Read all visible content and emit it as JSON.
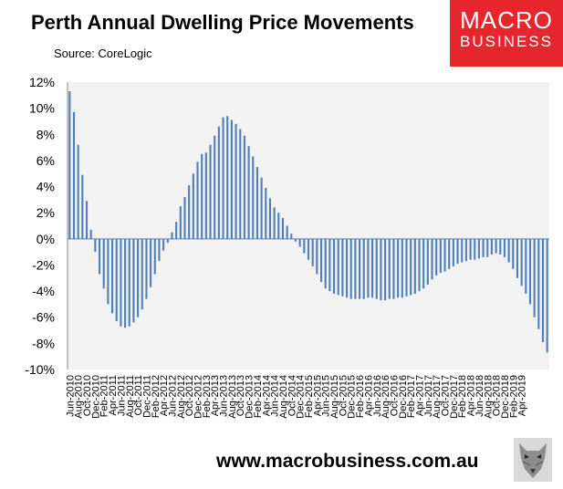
{
  "header": {
    "title": "Perth Annual Dwelling Price Movements",
    "source": "Source: CoreLogic"
  },
  "logo": {
    "line1": "MACRO",
    "line2": "BUSINESS",
    "color": "#e6262d"
  },
  "footer": {
    "url": "www.macrobusiness.com.au"
  },
  "chart_data": {
    "type": "bar",
    "title": "Perth Annual Dwelling Price Movements",
    "source": "Source: CoreLogic",
    "start_month": "2010-06",
    "end_month": "2019-04",
    "ylim": [
      -10,
      12
    ],
    "yticks": [
      "12%",
      "10%",
      "8%",
      "6%",
      "4%",
      "2%",
      "0%",
      "-2%",
      "-4%",
      "-6%",
      "-8%",
      "-10%"
    ],
    "xtick_labels": [
      "Jun-2010",
      "Aug-2010",
      "Oct-2010",
      "Dec-2010",
      "Feb-2011",
      "Apr-2011",
      "Jun-2011",
      "Aug-2011",
      "Oct-2011",
      "Dec-2011",
      "Feb-2012",
      "Apr-2012",
      "Jun-2012",
      "Aug-2012",
      "Oct-2012",
      "Dec-2012",
      "Feb-2013",
      "Apr-2013",
      "Jun-2013",
      "Aug-2013",
      "Oct-2013",
      "Dec-2013",
      "Feb-2014",
      "Apr-2014",
      "Jun-2014",
      "Aug-2014",
      "Oct-2014",
      "Dec-2014",
      "Feb-2015",
      "Apr-2015",
      "Jun-2015",
      "Aug-2015",
      "Oct-2015",
      "Dec-2015",
      "Feb-2016",
      "Apr-2016",
      "Jun-2016",
      "Aug-2016",
      "Oct-2016",
      "Dec-2016",
      "Feb-2017",
      "Apr-2017",
      "Jun-2017",
      "Aug-2017",
      "Oct-2017",
      "Dec-2017",
      "Feb-2018",
      "Apr-2018",
      "Jun-2018",
      "Aug-2018",
      "Oct-2018",
      "Dec-2018",
      "Feb-2019",
      "Apr-2019"
    ],
    "values": [
      11.3,
      9.7,
      7.2,
      4.9,
      2.9,
      0.7,
      -1.0,
      -2.7,
      -3.8,
      -5.0,
      -5.7,
      -6.3,
      -6.7,
      -6.8,
      -6.7,
      -6.4,
      -6.0,
      -5.4,
      -4.6,
      -3.7,
      -2.7,
      -1.7,
      -0.9,
      -0.3,
      0.5,
      1.3,
      2.5,
      3.2,
      4.1,
      5.0,
      5.9,
      6.5,
      6.6,
      7.2,
      7.9,
      8.6,
      9.3,
      9.4,
      9.1,
      8.8,
      8.4,
      7.9,
      7.1,
      6.3,
      5.5,
      4.7,
      3.9,
      3.1,
      2.4,
      2.0,
      1.6,
      1.0,
      0.4,
      -0.2,
      -0.6,
      -1.1,
      -1.6,
      -2.1,
      -2.7,
      -3.3,
      -3.8,
      -4.0,
      -4.2,
      -4.3,
      -4.4,
      -4.5,
      -4.6,
      -4.6,
      -4.6,
      -4.6,
      -4.5,
      -4.5,
      -4.6,
      -4.7,
      -4.7,
      -4.6,
      -4.6,
      -4.5,
      -4.5,
      -4.4,
      -4.3,
      -4.2,
      -4.0,
      -3.8,
      -3.5,
      -3.1,
      -2.8,
      -2.6,
      -2.5,
      -2.3,
      -2.1,
      -1.9,
      -1.8,
      -1.7,
      -1.6,
      -1.6,
      -1.5,
      -1.4,
      -1.4,
      -1.2,
      -1.1,
      -1.2,
      -1.4,
      -1.8,
      -2.3,
      -3.0,
      -3.6,
      -4.2,
      -5.0,
      -6.0,
      -6.9,
      -7.9,
      -8.7
    ],
    "bar_color": "#4f7fb8",
    "plot_bg": "#f2f2f2",
    "grid": false,
    "legend": "none"
  }
}
